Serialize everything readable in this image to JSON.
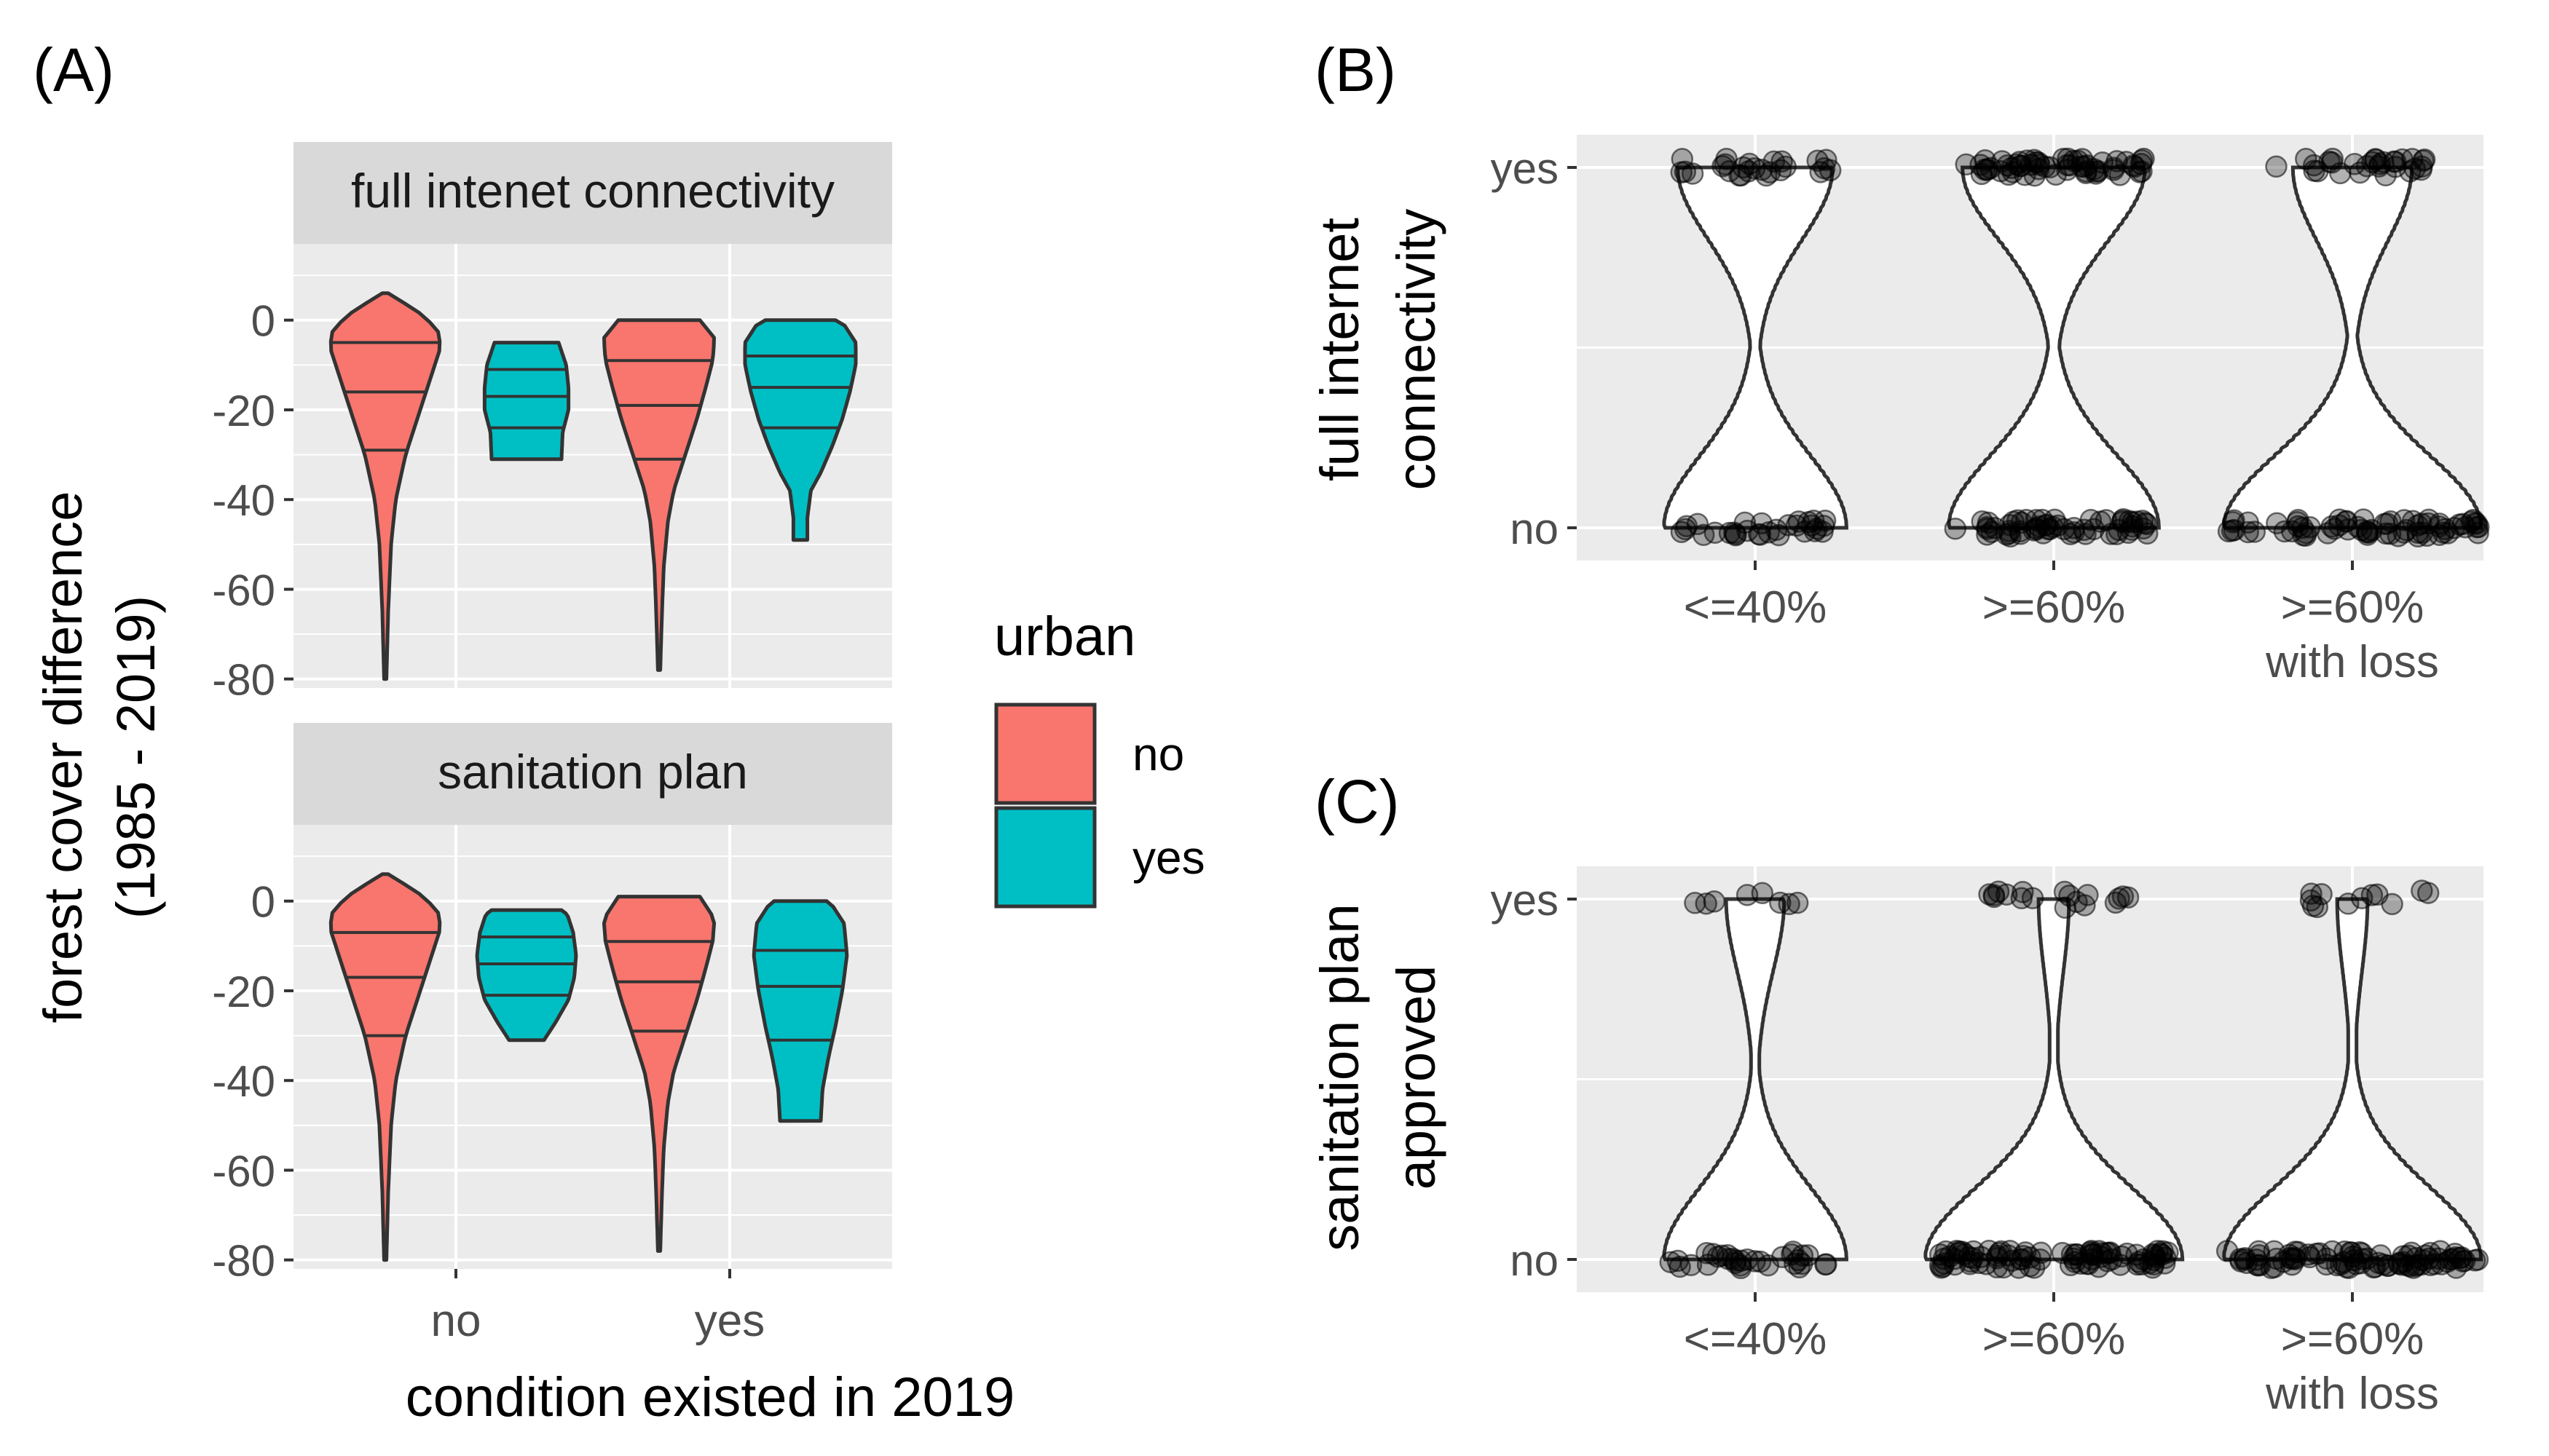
{
  "panel_labels": {
    "a": "(A)",
    "b": "(B)",
    "c": "(C)"
  },
  "colors": {
    "urban_no": "#F8766D",
    "urban_yes": "#00BFC4",
    "panel_bg": "#EBEBEB",
    "strip_bg": "#D9D9D9"
  },
  "chart_data": [
    {
      "id": "A",
      "type": "violin",
      "xlabel": "condition existed in 2019",
      "ylabel": "forest cover difference",
      "ylabel2": "(1985 - 2019)",
      "categories": [
        "no",
        "yes"
      ],
      "yticks": [
        0,
        -20,
        -40,
        -60,
        -80
      ],
      "ylim": [
        -82,
        17
      ],
      "legend": {
        "title": "urban",
        "entries": [
          "no",
          "yes"
        ],
        "placement": "right"
      },
      "facets": [
        {
          "strip": "full intenet connectivity",
          "violins": [
            {
              "category": "no",
              "urban": "no",
              "range": [
                -80,
                6
              ],
              "quantiles": [
                -29,
                -16,
                -5
              ],
              "shape": [
                [
                  -80,
                  0.02
                ],
                [
                  -65,
                  0.05
                ],
                [
                  -50,
                  0.1
                ],
                [
                  -40,
                  0.18
                ],
                [
                  -30,
                  0.35
                ],
                [
                  -20,
                  0.6
                ],
                [
                  -12,
                  0.8
                ],
                [
                  -6,
                  0.95
                ],
                [
                  -2,
                  0.9
                ],
                [
                  2,
                  0.55
                ],
                [
                  6,
                  0.05
                ]
              ]
            },
            {
              "category": "no",
              "urban": "yes",
              "range": [
                -31,
                -5
              ],
              "quantiles": [
                -24,
                -17,
                -11
              ],
              "shape": [
                [
                  -31,
                  0.6
                ],
                [
                  -25,
                  0.62
                ],
                [
                  -20,
                  0.72
                ],
                [
                  -15,
                  0.72
                ],
                [
                  -10,
                  0.68
                ],
                [
                  -5,
                  0.55
                ]
              ]
            },
            {
              "category": "yes",
              "urban": "no",
              "range": [
                -78,
                0
              ],
              "quantiles": [
                -31,
                -19,
                -9
              ],
              "shape": [
                [
                  -78,
                  0.02
                ],
                [
                  -65,
                  0.05
                ],
                [
                  -55,
                  0.08
                ],
                [
                  -45,
                  0.15
                ],
                [
                  -38,
                  0.25
                ],
                [
                  -30,
                  0.45
                ],
                [
                  -22,
                  0.65
                ],
                [
                  -15,
                  0.8
                ],
                [
                  -9,
                  0.92
                ],
                [
                  -4,
                  0.95
                ],
                [
                  0,
                  0.7
                ]
              ]
            },
            {
              "category": "yes",
              "urban": "yes",
              "range": [
                -49,
                0
              ],
              "quantiles": [
                -24,
                -15,
                -8
              ],
              "shape": [
                [
                  -49,
                  0.12
                ],
                [
                  -44,
                  0.12
                ],
                [
                  -38,
                  0.18
                ],
                [
                  -34,
                  0.35
                ],
                [
                  -28,
                  0.55
                ],
                [
                  -22,
                  0.72
                ],
                [
                  -16,
                  0.85
                ],
                [
                  -10,
                  0.95
                ],
                [
                  -5,
                  0.95
                ],
                [
                  -1,
                  0.75
                ],
                [
                  0,
                  0.6
                ]
              ]
            }
          ]
        },
        {
          "strip": "sanitation plan",
          "violins": [
            {
              "category": "no",
              "urban": "no",
              "range": [
                -80,
                6
              ],
              "quantiles": [
                -30,
                -17,
                -7
              ],
              "shape": [
                [
                  -80,
                  0.02
                ],
                [
                  -65,
                  0.05
                ],
                [
                  -50,
                  0.1
                ],
                [
                  -40,
                  0.18
                ],
                [
                  -30,
                  0.35
                ],
                [
                  -20,
                  0.6
                ],
                [
                  -12,
                  0.8
                ],
                [
                  -6,
                  0.95
                ],
                [
                  -2,
                  0.9
                ],
                [
                  2,
                  0.55
                ],
                [
                  6,
                  0.05
                ]
              ]
            },
            {
              "category": "no",
              "urban": "yes",
              "range": [
                -31,
                -2
              ],
              "quantiles": [
                -21,
                -14,
                -8
              ],
              "shape": [
                [
                  -31,
                  0.3
                ],
                [
                  -27,
                  0.5
                ],
                [
                  -22,
                  0.72
                ],
                [
                  -17,
                  0.82
                ],
                [
                  -12,
                  0.85
                ],
                [
                  -7,
                  0.8
                ],
                [
                  -3,
                  0.7
                ],
                [
                  -2,
                  0.6
                ]
              ]
            },
            {
              "category": "yes",
              "urban": "no",
              "range": [
                -78,
                1
              ],
              "quantiles": [
                -29,
                -18,
                -9
              ],
              "shape": [
                [
                  -78,
                  0.02
                ],
                [
                  -65,
                  0.05
                ],
                [
                  -55,
                  0.08
                ],
                [
                  -45,
                  0.15
                ],
                [
                  -38,
                  0.25
                ],
                [
                  -30,
                  0.45
                ],
                [
                  -22,
                  0.65
                ],
                [
                  -15,
                  0.8
                ],
                [
                  -9,
                  0.92
                ],
                [
                  -4,
                  0.95
                ],
                [
                  1,
                  0.7
                ]
              ]
            },
            {
              "category": "yes",
              "urban": "yes",
              "range": [
                -49,
                0
              ],
              "quantiles": [
                -31,
                -19,
                -11
              ],
              "shape": [
                [
                  -49,
                  0.35
                ],
                [
                  -42,
                  0.38
                ],
                [
                  -35,
                  0.48
                ],
                [
                  -28,
                  0.6
                ],
                [
                  -20,
                  0.72
                ],
                [
                  -12,
                  0.8
                ],
                [
                  -5,
                  0.75
                ],
                [
                  -1,
                  0.55
                ],
                [
                  0,
                  0.45
                ]
              ]
            }
          ]
        }
      ]
    },
    {
      "id": "B",
      "type": "violin",
      "ylabel": "full internet",
      "ylabel2": "connectivity",
      "categories": [
        "<=40%",
        ">=60%",
        ">=60%"
      ],
      "category_lines2": [
        "",
        "",
        "with loss"
      ],
      "yticks": [
        "yes",
        "no"
      ],
      "groups": [
        {
          "category": "<=40%",
          "top_width": 0.55,
          "bottom_width": 0.65,
          "points_yes": 26,
          "points_no": 30
        },
        {
          "category": ">=60%",
          "top_width": 0.65,
          "bottom_width": 0.75,
          "points_yes": 60,
          "points_no": 60
        },
        {
          "category": ">=60% with loss",
          "top_width": 0.42,
          "bottom_width": 0.92,
          "points_yes": 30,
          "points_no": 70
        }
      ]
    },
    {
      "id": "C",
      "type": "violin",
      "ylabel": "sanitation plan",
      "ylabel2": "approved",
      "categories": [
        "<=40%",
        ">=60%",
        ">=60%"
      ],
      "category_lines2": [
        "",
        "",
        "with loss"
      ],
      "yticks": [
        "yes",
        "no"
      ],
      "groups": [
        {
          "category": "<=40%",
          "top_width": 0.2,
          "bottom_width": 0.65,
          "points_yes": 8,
          "points_no": 32
        },
        {
          "category": ">=60%",
          "top_width": 0.1,
          "bottom_width": 0.92,
          "points_yes": 18,
          "points_no": 90
        },
        {
          "category": ">=60% with loss",
          "top_width": 0.1,
          "bottom_width": 0.92,
          "points_yes": 12,
          "points_no": 90
        }
      ]
    }
  ]
}
